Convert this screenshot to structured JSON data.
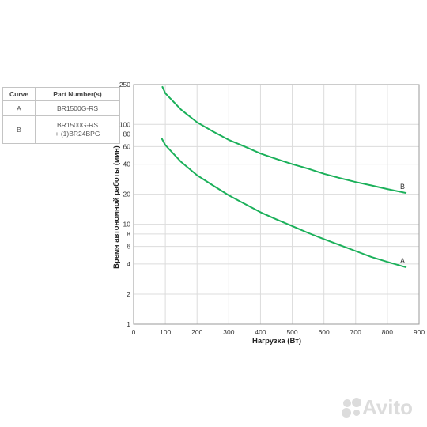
{
  "legend": {
    "headers": [
      "Curve",
      "Part Number(s)"
    ],
    "rows": [
      {
        "curve": "A",
        "part_lines": [
          "BR1500G-RS"
        ]
      },
      {
        "curve": "B",
        "part_lines": [
          "BR1500G-RS",
          "+ (1)BR24BPG"
        ]
      }
    ]
  },
  "watermark": {
    "text": "Avito"
  },
  "chart_data": {
    "type": "line",
    "title": "",
    "xlabel": "Нагрузка (Вт)",
    "ylabel": "Время автономной работы (мин)",
    "xlim": [
      0,
      900
    ],
    "ylim": [
      1,
      250
    ],
    "y_scale": "log",
    "grid": true,
    "x_ticks": [
      0,
      100,
      200,
      300,
      400,
      500,
      600,
      700,
      800,
      900
    ],
    "y_ticks": [
      1,
      2,
      4,
      6,
      8,
      10,
      20,
      40,
      60,
      80,
      100,
      250
    ],
    "line_color": "#1bb05a",
    "series": [
      {
        "name": "B",
        "x": [
          90,
          100,
          150,
          200,
          250,
          300,
          350,
          400,
          450,
          500,
          550,
          600,
          650,
          700,
          750,
          800,
          860
        ],
        "values": [
          240,
          205,
          140,
          105,
          85,
          70,
          60,
          51,
          45,
          40,
          36,
          32,
          29,
          26.5,
          24.5,
          22.5,
          20.5
        ]
      },
      {
        "name": "A",
        "x": [
          88,
          100,
          150,
          200,
          250,
          300,
          350,
          400,
          450,
          500,
          550,
          600,
          650,
          700,
          750,
          800,
          860
        ],
        "values": [
          73,
          62,
          42,
          31,
          24.5,
          19.5,
          16,
          13.2,
          11.2,
          9.6,
          8.2,
          7.1,
          6.2,
          5.4,
          4.7,
          4.2,
          3.7
        ]
      }
    ]
  }
}
